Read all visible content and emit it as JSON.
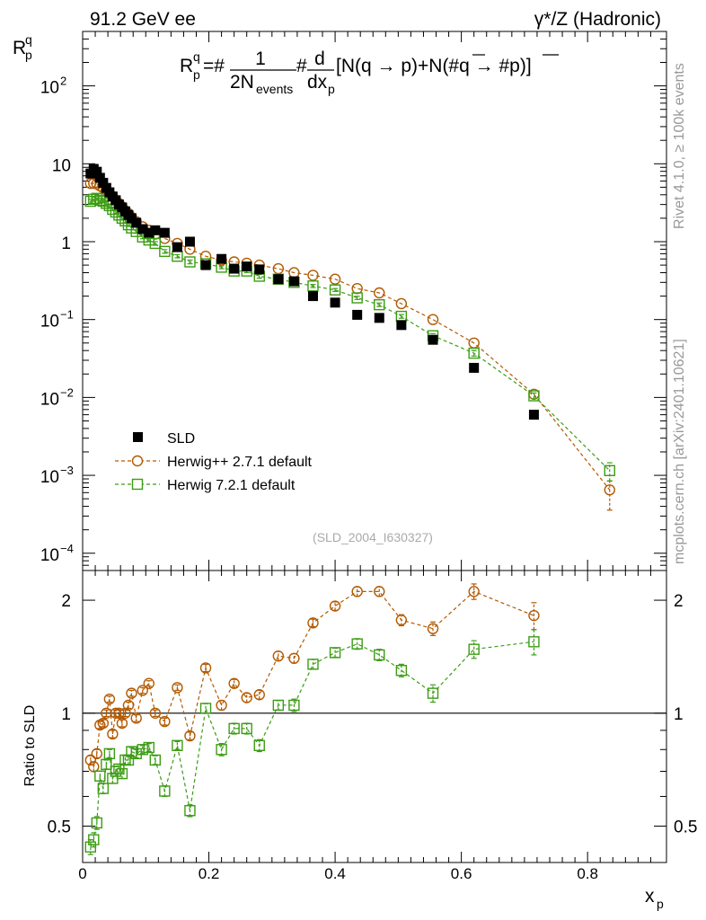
{
  "header": {
    "left_title": "91.2 GeV ee",
    "right_title": "γ*/Z (Hadronic)"
  },
  "side_labels": {
    "rivet": "Rivet 4.1.0, ≥ 100k events",
    "mcplots": "mcplots.cern.ch [arXiv:2401.10621]"
  },
  "analysis_id": "(SLD_2004_I630327)",
  "colors": {
    "data": "#000000",
    "herwigpp": "#b35900",
    "herwig7": "#3c9c14",
    "side_text": "#999999"
  },
  "chart_data": [
    {
      "type": "scatter",
      "panel": "main",
      "yscale": "log",
      "xlim": [
        0,
        0.925
      ],
      "ylim": [
        6e-05,
        500
      ],
      "ylabel": "R_p^q",
      "formula": {
        "prefix": "R",
        "sup": "q",
        "sub": "p",
        "eq": "=#",
        "frac1_num": "1",
        "frac1_den": "2N",
        "frac1_den_sub": "events",
        "hash2": "#",
        "frac2_num": "d",
        "frac2_den": "dx",
        "frac2_den_sub": "p",
        "bracket_text": "[N(q →  p)+N(#q →  #p)]"
      },
      "yticks": [
        {
          "value": 0.0001,
          "base": "10",
          "exp": "−4"
        },
        {
          "value": 0.001,
          "base": "10",
          "exp": "−3"
        },
        {
          "value": 0.01,
          "base": "10",
          "exp": "−2"
        },
        {
          "value": 0.1,
          "base": "10",
          "exp": "−1"
        },
        {
          "value": 1,
          "base": "1",
          "exp": ""
        },
        {
          "value": 10,
          "base": "10",
          "exp": ""
        },
        {
          "value": 100,
          "base": "10",
          "exp": "2"
        }
      ],
      "legend": [
        {
          "name": "SLD",
          "style": "square-filled"
        },
        {
          "name": "Herwig++ 2.7.1 default",
          "style": "circle-dashed"
        },
        {
          "name": "Herwig 7.2.1 default",
          "style": "square-dashed"
        }
      ],
      "series": [
        {
          "name": "SLD",
          "x": [
            0.0125,
            0.0175,
            0.0225,
            0.0275,
            0.0325,
            0.0375,
            0.0425,
            0.0475,
            0.0525,
            0.0575,
            0.0625,
            0.0675,
            0.0725,
            0.0775,
            0.085,
            0.095,
            0.105,
            0.115,
            0.13,
            0.15,
            0.17,
            0.195,
            0.22,
            0.24,
            0.26,
            0.28,
            0.31,
            0.335,
            0.365,
            0.4,
            0.435,
            0.47,
            0.505,
            0.555,
            0.62,
            0.715
          ],
          "y": [
            7.5,
            8.6,
            7.9,
            6.6,
            5.7,
            4.9,
            4.3,
            3.8,
            3.4,
            3.0,
            2.75,
            2.45,
            2.2,
            2.0,
            1.75,
            1.45,
            1.3,
            1.4,
            1.3,
            0.85,
            1.0,
            0.5,
            0.6,
            0.45,
            0.48,
            0.44,
            0.33,
            0.31,
            0.2,
            0.165,
            0.115,
            0.105,
            0.085,
            0.055,
            0.024,
            0.006
          ]
        },
        {
          "name": "Herwig++ 2.7.1 default",
          "x": [
            0.0125,
            0.0175,
            0.0225,
            0.0275,
            0.0325,
            0.0375,
            0.0425,
            0.0475,
            0.0525,
            0.0575,
            0.0625,
            0.0675,
            0.0725,
            0.0775,
            0.085,
            0.095,
            0.105,
            0.115,
            0.13,
            0.15,
            0.17,
            0.195,
            0.22,
            0.24,
            0.26,
            0.28,
            0.31,
            0.335,
            0.365,
            0.4,
            0.435,
            0.47,
            0.505,
            0.555,
            0.62,
            0.715,
            0.835
          ],
          "y": [
            5.6,
            5.6,
            5.5,
            5.2,
            4.9,
            4.6,
            4.2,
            3.8,
            3.4,
            3.1,
            2.8,
            2.5,
            2.3,
            2.05,
            1.8,
            1.55,
            1.4,
            1.25,
            1.1,
            0.95,
            0.8,
            0.65,
            0.58,
            0.55,
            0.53,
            0.5,
            0.45,
            0.4,
            0.37,
            0.33,
            0.25,
            0.22,
            0.16,
            0.1,
            0.05,
            0.011,
            0.00065
          ]
        },
        {
          "name": "Herwig 7.2.1 default",
          "x": [
            0.0125,
            0.0175,
            0.0225,
            0.0275,
            0.0325,
            0.0375,
            0.0425,
            0.0475,
            0.0525,
            0.0575,
            0.0625,
            0.0675,
            0.0725,
            0.0775,
            0.085,
            0.095,
            0.105,
            0.115,
            0.13,
            0.15,
            0.17,
            0.195,
            0.22,
            0.24,
            0.26,
            0.28,
            0.31,
            0.335,
            0.365,
            0.4,
            0.435,
            0.47,
            0.505,
            0.555,
            0.62,
            0.715,
            0.835
          ],
          "y": [
            3.3,
            3.5,
            3.6,
            3.4,
            3.3,
            3.1,
            2.9,
            2.6,
            2.4,
            2.2,
            2.0,
            1.85,
            1.65,
            1.5,
            1.35,
            1.15,
            1.05,
            0.95,
            0.75,
            0.65,
            0.55,
            0.52,
            0.47,
            0.42,
            0.42,
            0.36,
            0.33,
            0.3,
            0.27,
            0.24,
            0.19,
            0.155,
            0.11,
            0.062,
            0.037,
            0.0105,
            0.00115
          ],
          "err": [
            0.2,
            0.2,
            0.2,
            0.2,
            0.15,
            0.15,
            0.15,
            0.1,
            0.1,
            0.1,
            0.1,
            0.1,
            0.08,
            0.08,
            0.07,
            0.06,
            0.05,
            0.05,
            0.04,
            0.03,
            0.03,
            0.03,
            0.02,
            0.02,
            0.02,
            0.02,
            0.015,
            0.015,
            0.012,
            0.01,
            0.009,
            0.008,
            0.006,
            0.004,
            0.003,
            0.0009,
            0.0003
          ]
        }
      ]
    },
    {
      "type": "scatter",
      "panel": "ratio",
      "yscale": "log",
      "xlim": [
        0,
        0.925
      ],
      "ylim": [
        0.4,
        2.4
      ],
      "xlabel": "x_p",
      "xlabel_main": "x",
      "xlabel_sub": "p",
      "ylabel": "Ratio to SLD",
      "yticks": [
        0.5,
        1,
        2
      ],
      "ytick_labels": [
        "0.5",
        "1",
        "2"
      ],
      "xticks": [
        0,
        0.2,
        0.4,
        0.6,
        0.8
      ],
      "xtick_labels": [
        "0",
        "0.2",
        "0.4",
        "0.6",
        "0.8"
      ],
      "reference_line": 1,
      "series": [
        {
          "name": "Herwig++ 2.7.1 default",
          "x": [
            0.0125,
            0.0175,
            0.0225,
            0.0275,
            0.0325,
            0.0375,
            0.0425,
            0.0475,
            0.0525,
            0.0575,
            0.0625,
            0.0675,
            0.0725,
            0.0775,
            0.085,
            0.095,
            0.105,
            0.115,
            0.13,
            0.15,
            0.17,
            0.195,
            0.22,
            0.24,
            0.26,
            0.28,
            0.31,
            0.335,
            0.365,
            0.4,
            0.435,
            0.47,
            0.505,
            0.555,
            0.62,
            0.715
          ],
          "y": [
            0.75,
            0.72,
            0.78,
            0.93,
            0.94,
            1.0,
            1.09,
            0.88,
            1.0,
            1.0,
            0.94,
            1.0,
            1.05,
            1.13,
            0.97,
            1.15,
            1.2,
            1.0,
            0.95,
            1.17,
            0.87,
            1.32,
            1.05,
            1.2,
            1.1,
            1.12,
            1.42,
            1.4,
            1.74,
            1.93,
            2.11,
            2.11,
            1.77,
            1.68,
            2.11,
            1.82
          ],
          "err": [
            0.02,
            0.02,
            0.02,
            0.02,
            0.02,
            0.02,
            0.02,
            0.02,
            0.02,
            0.02,
            0.02,
            0.02,
            0.02,
            0.02,
            0.02,
            0.02,
            0.02,
            0.02,
            0.02,
            0.02,
            0.02,
            0.03,
            0.03,
            0.03,
            0.03,
            0.03,
            0.04,
            0.04,
            0.04,
            0.05,
            0.06,
            0.06,
            0.06,
            0.07,
            0.1,
            0.15
          ]
        },
        {
          "name": "Herwig 7.2.1 default",
          "x": [
            0.0125,
            0.0175,
            0.0225,
            0.0275,
            0.0325,
            0.0375,
            0.0425,
            0.0475,
            0.0525,
            0.0575,
            0.0625,
            0.0675,
            0.0725,
            0.0775,
            0.085,
            0.095,
            0.105,
            0.115,
            0.13,
            0.15,
            0.17,
            0.195,
            0.22,
            0.24,
            0.26,
            0.28,
            0.31,
            0.335,
            0.365,
            0.4,
            0.435,
            0.47,
            0.505,
            0.555,
            0.62,
            0.715
          ],
          "y": [
            0.44,
            0.46,
            0.51,
            0.68,
            0.63,
            0.73,
            0.78,
            0.67,
            0.7,
            0.71,
            0.69,
            0.75,
            0.75,
            0.79,
            0.78,
            0.8,
            0.81,
            0.75,
            0.62,
            0.82,
            0.55,
            1.03,
            0.8,
            0.91,
            0.91,
            0.82,
            1.05,
            1.05,
            1.35,
            1.45,
            1.53,
            1.43,
            1.3,
            1.13,
            1.48,
            1.55
          ],
          "err": [
            0.02,
            0.02,
            0.02,
            0.02,
            0.02,
            0.02,
            0.02,
            0.02,
            0.02,
            0.02,
            0.02,
            0.02,
            0.02,
            0.02,
            0.02,
            0.02,
            0.02,
            0.02,
            0.02,
            0.02,
            0.02,
            0.03,
            0.03,
            0.03,
            0.03,
            0.03,
            0.03,
            0.04,
            0.04,
            0.04,
            0.05,
            0.05,
            0.05,
            0.06,
            0.08,
            0.12
          ]
        }
      ]
    }
  ]
}
